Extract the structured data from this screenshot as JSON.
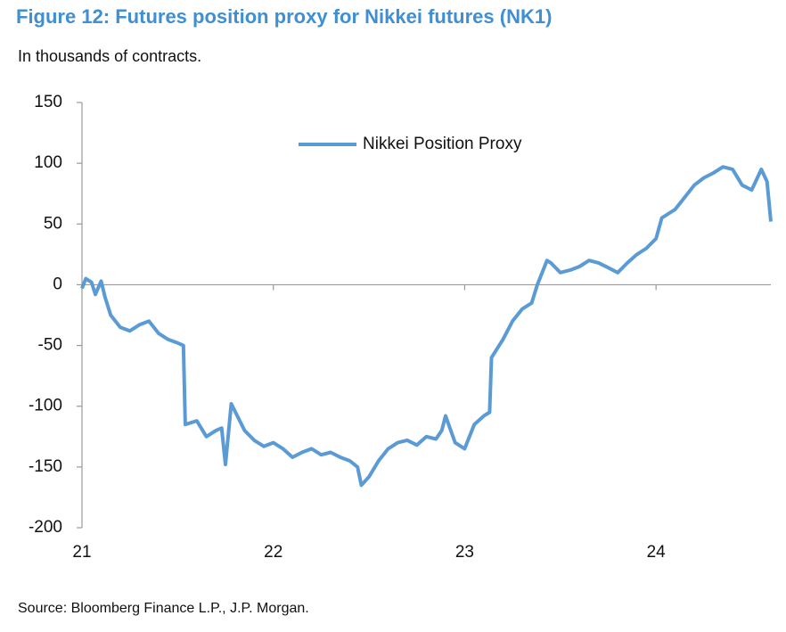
{
  "chart_data": {
    "type": "line",
    "title": "Figure 12: Futures position proxy for Nikkei futures (NK1)",
    "subtitle": "In thousands of contracts.",
    "source": "Source: Bloomberg Finance L.P., J.P. Morgan.",
    "xlim": [
      21,
      24.6
    ],
    "xticks": [
      21,
      22,
      23,
      24
    ],
    "ylim": [
      -200,
      150
    ],
    "yticks": [
      -200,
      -150,
      -100,
      -50,
      0,
      50,
      100,
      150
    ],
    "x": [
      21.0,
      21.02,
      21.05,
      21.07,
      21.1,
      21.12,
      21.15,
      21.2,
      21.25,
      21.3,
      21.35,
      21.4,
      21.45,
      21.5,
      21.53,
      21.54,
      21.6,
      21.65,
      21.7,
      21.73,
      21.75,
      21.78,
      21.85,
      21.9,
      21.95,
      22.0,
      22.05,
      22.1,
      22.15,
      22.2,
      22.25,
      22.3,
      22.35,
      22.4,
      22.44,
      22.46,
      22.5,
      22.55,
      22.6,
      22.65,
      22.7,
      22.75,
      22.8,
      22.85,
      22.88,
      22.9,
      22.95,
      23.0,
      23.05,
      23.1,
      23.13,
      23.14,
      23.2,
      23.25,
      23.3,
      23.35,
      23.38,
      23.43,
      23.45,
      23.5,
      23.55,
      23.6,
      23.65,
      23.7,
      23.75,
      23.8,
      23.85,
      23.9,
      23.95,
      24.0,
      24.03,
      24.1,
      24.15,
      24.2,
      24.25,
      24.3,
      24.35,
      24.4,
      24.45,
      24.5,
      24.55,
      24.58,
      24.6
    ],
    "series": [
      {
        "name": "Nikkei Position Proxy",
        "color": "#5b9bd5",
        "values": [
          -3,
          5,
          2,
          -8,
          3,
          -10,
          -25,
          -35,
          -38,
          -33,
          -30,
          -40,
          -45,
          -48,
          -50,
          -115,
          -112,
          -125,
          -120,
          -118,
          -148,
          -98,
          -120,
          -128,
          -133,
          -130,
          -135,
          -142,
          -138,
          -135,
          -140,
          -138,
          -142,
          -145,
          -150,
          -165,
          -158,
          -145,
          -135,
          -130,
          -128,
          -132,
          -125,
          -127,
          -120,
          -108,
          -130,
          -135,
          -115,
          -108,
          -105,
          -60,
          -45,
          -30,
          -20,
          -15,
          0,
          20,
          18,
          10,
          12,
          15,
          20,
          18,
          14,
          10,
          18,
          25,
          30,
          38,
          55,
          62,
          72,
          82,
          88,
          92,
          97,
          95,
          82,
          78,
          95,
          85,
          52
        ]
      }
    ]
  }
}
